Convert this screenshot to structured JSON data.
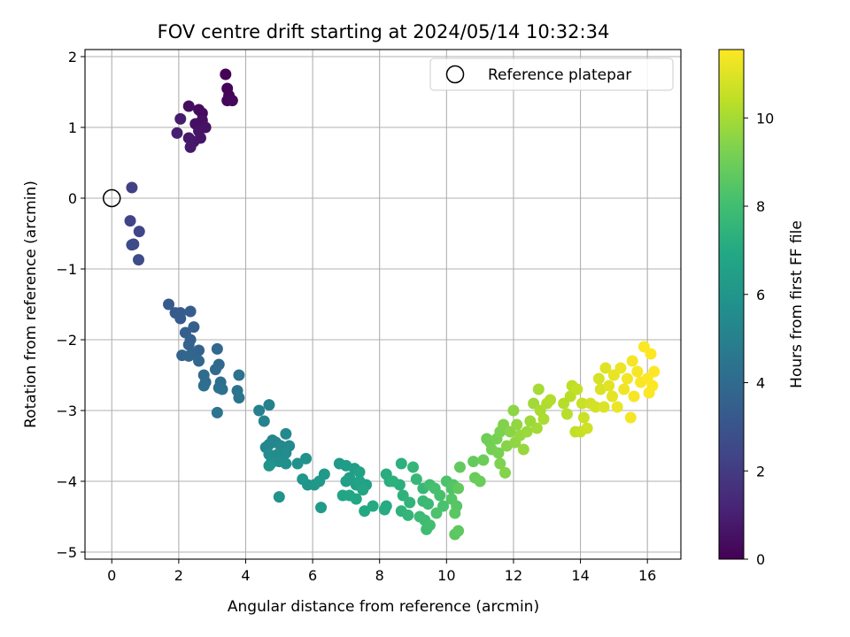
{
  "chart_data": {
    "type": "scatter",
    "title": "FOV centre drift starting at 2024/05/14 10:32:34",
    "xlabel": "Angular distance from reference (arcmin)",
    "ylabel": "Rotation from reference (arcmin)",
    "xlim": [
      -0.8,
      17.0
    ],
    "ylim": [
      -5.1,
      2.1
    ],
    "xticks": [
      0,
      2,
      4,
      6,
      8,
      10,
      12,
      14,
      16
    ],
    "yticks": [
      -5,
      -4,
      -3,
      -2,
      -1,
      0,
      1,
      2
    ],
    "grid": true,
    "legend": {
      "placement": "top-right",
      "entries": [
        "Reference platepar"
      ]
    },
    "reference_point": {
      "x": 0.0,
      "y": 0.0,
      "label": "Reference platepar"
    },
    "colorbar": {
      "label": "Hours from first FF file",
      "colormap": "viridis",
      "range": [
        0,
        11.55
      ],
      "ticks": [
        0,
        2,
        4,
        6,
        8,
        10
      ]
    },
    "points": [
      [
        3.4,
        1.75,
        0.05
      ],
      [
        3.45,
        1.55,
        0.1
      ],
      [
        3.5,
        1.45,
        0.15
      ],
      [
        3.45,
        1.38,
        0.2
      ],
      [
        3.6,
        1.38,
        0.25
      ],
      [
        2.7,
        1.2,
        0.3
      ],
      [
        2.6,
        1.25,
        0.35
      ],
      [
        2.3,
        1.3,
        0.4
      ],
      [
        2.7,
        1.1,
        0.45
      ],
      [
        2.5,
        1.05,
        0.5
      ],
      [
        2.8,
        1.0,
        0.55
      ],
      [
        2.6,
        0.95,
        0.6
      ],
      [
        2.65,
        0.85,
        0.65
      ],
      [
        2.45,
        0.8,
        0.7
      ],
      [
        2.3,
        0.85,
        0.75
      ],
      [
        2.35,
        0.72,
        0.8
      ],
      [
        2.05,
        1.12,
        0.9
      ],
      [
        1.95,
        0.92,
        1.0
      ],
      [
        0.6,
        0.15,
        2.2
      ],
      [
        0.55,
        -0.32,
        2.3
      ],
      [
        0.82,
        -0.47,
        2.4
      ],
      [
        0.65,
        -0.65,
        2.5
      ],
      [
        0.6,
        -0.66,
        2.6
      ],
      [
        0.8,
        -0.87,
        2.7
      ],
      [
        1.7,
        -1.5,
        3.2
      ],
      [
        1.9,
        -1.62,
        3.25
      ],
      [
        2.05,
        -1.62,
        3.3
      ],
      [
        2.05,
        -1.7,
        3.35
      ],
      [
        2.35,
        -1.6,
        3.4
      ],
      [
        2.45,
        -1.82,
        3.45
      ],
      [
        2.2,
        -1.9,
        3.5
      ],
      [
        2.35,
        -2.0,
        3.55
      ],
      [
        2.3,
        -2.07,
        3.6
      ],
      [
        2.6,
        -2.15,
        3.65
      ],
      [
        2.45,
        -2.2,
        3.7
      ],
      [
        2.1,
        -2.22,
        3.75
      ],
      [
        2.3,
        -2.23,
        3.8
      ],
      [
        2.6,
        -2.3,
        3.85
      ],
      [
        3.15,
        -2.13,
        3.9
      ],
      [
        3.2,
        -2.35,
        3.95
      ],
      [
        3.1,
        -2.42,
        4.0
      ],
      [
        2.75,
        -2.5,
        4.05
      ],
      [
        2.8,
        -2.6,
        4.1
      ],
      [
        3.25,
        -2.6,
        4.15
      ],
      [
        2.75,
        -2.65,
        4.2
      ],
      [
        3.3,
        -2.7,
        4.25
      ],
      [
        3.2,
        -2.68,
        4.3
      ],
      [
        3.8,
        -2.5,
        4.35
      ],
      [
        3.75,
        -2.72,
        4.4
      ],
      [
        3.8,
        -2.82,
        4.45
      ],
      [
        3.15,
        -3.03,
        4.5
      ],
      [
        4.4,
        -3.0,
        5.0
      ],
      [
        4.7,
        -2.92,
        5.05
      ],
      [
        4.55,
        -3.15,
        5.1
      ],
      [
        4.8,
        -3.42,
        5.15
      ],
      [
        4.9,
        -3.45,
        5.2
      ],
      [
        4.7,
        -3.48,
        5.25
      ],
      [
        4.6,
        -3.52,
        5.3
      ],
      [
        5.05,
        -3.5,
        5.35
      ],
      [
        5.2,
        -3.33,
        5.4
      ],
      [
        5.3,
        -3.5,
        5.45
      ],
      [
        4.95,
        -3.62,
        5.5
      ],
      [
        5.2,
        -3.6,
        5.55
      ],
      [
        4.7,
        -3.62,
        5.6
      ],
      [
        4.75,
        -3.75,
        5.65
      ],
      [
        5.0,
        -3.72,
        5.7
      ],
      [
        5.2,
        -3.75,
        5.75
      ],
      [
        5.55,
        -3.75,
        5.8
      ],
      [
        5.8,
        -3.68,
        5.85
      ],
      [
        5.0,
        -4.22,
        5.9
      ],
      [
        4.7,
        -3.78,
        5.95
      ],
      [
        5.85,
        -4.05,
        6.0
      ],
      [
        5.7,
        -3.97,
        6.05
      ],
      [
        6.05,
        -4.05,
        6.1
      ],
      [
        6.2,
        -4.0,
        6.15
      ],
      [
        6.35,
        -3.9,
        6.2
      ],
      [
        6.25,
        -4.37,
        6.25
      ],
      [
        6.8,
        -3.75,
        6.3
      ],
      [
        7.0,
        -3.78,
        6.35
      ],
      [
        7.25,
        -3.82,
        6.4
      ],
      [
        7.1,
        -3.95,
        6.45
      ],
      [
        7.0,
        -4.0,
        6.5
      ],
      [
        7.3,
        -4.05,
        6.55
      ],
      [
        7.4,
        -3.87,
        6.6
      ],
      [
        7.4,
        -4.0,
        6.65
      ],
      [
        7.6,
        -4.05,
        6.7
      ],
      [
        7.5,
        -4.12,
        6.75
      ],
      [
        6.9,
        -4.2,
        6.8
      ],
      [
        7.1,
        -4.2,
        6.85
      ],
      [
        7.3,
        -4.25,
        6.9
      ],
      [
        7.55,
        -4.42,
        6.95
      ],
      [
        7.8,
        -4.35,
        7.0
      ],
      [
        8.2,
        -4.35,
        7.05
      ],
      [
        8.15,
        -4.4,
        7.1
      ],
      [
        8.2,
        -3.9,
        7.15
      ],
      [
        8.3,
        -4.0,
        7.2
      ],
      [
        8.6,
        -4.05,
        7.25
      ],
      [
        8.65,
        -3.75,
        7.3
      ],
      [
        8.4,
        -4.0,
        7.35
      ],
      [
        8.7,
        -4.2,
        7.4
      ],
      [
        8.65,
        -4.42,
        7.45
      ],
      [
        8.9,
        -4.3,
        7.5
      ],
      [
        8.85,
        -4.48,
        7.55
      ],
      [
        9.0,
        -3.8,
        7.6
      ],
      [
        9.1,
        -3.97,
        7.65
      ],
      [
        9.3,
        -4.1,
        7.7
      ],
      [
        9.3,
        -4.28,
        7.75
      ],
      [
        9.45,
        -4.32,
        7.8
      ],
      [
        9.2,
        -4.5,
        7.85
      ],
      [
        9.35,
        -4.55,
        7.9
      ],
      [
        9.4,
        -4.68,
        7.95
      ],
      [
        9.5,
        -4.62,
        8.0
      ],
      [
        9.5,
        -4.05,
        8.05
      ],
      [
        9.65,
        -4.1,
        8.1
      ],
      [
        9.8,
        -4.2,
        8.15
      ],
      [
        9.9,
        -4.35,
        8.2
      ],
      [
        9.7,
        -4.45,
        8.25
      ],
      [
        10.0,
        -4.0,
        8.3
      ],
      [
        10.15,
        -4.1,
        8.35
      ],
      [
        10.2,
        -4.05,
        8.4
      ],
      [
        10.15,
        -4.25,
        8.45
      ],
      [
        10.3,
        -4.35,
        8.5
      ],
      [
        10.25,
        -4.45,
        8.55
      ],
      [
        10.25,
        -4.75,
        8.6
      ],
      [
        10.35,
        -4.7,
        8.65
      ],
      [
        10.35,
        -4.1,
        8.7
      ],
      [
        10.4,
        -3.8,
        8.75
      ],
      [
        10.8,
        -3.72,
        8.8
      ],
      [
        10.85,
        -3.95,
        8.85
      ],
      [
        11.0,
        -4.0,
        8.9
      ],
      [
        11.1,
        -3.7,
        8.95
      ],
      [
        11.2,
        -3.4,
        9.0
      ],
      [
        11.3,
        -3.45,
        9.05
      ],
      [
        11.35,
        -3.55,
        9.1
      ],
      [
        11.5,
        -3.4,
        9.15
      ],
      [
        11.55,
        -3.6,
        9.2
      ],
      [
        11.6,
        -3.3,
        9.25
      ],
      [
        11.6,
        -3.75,
        9.3
      ],
      [
        11.7,
        -3.2,
        9.35
      ],
      [
        11.75,
        -3.88,
        9.4
      ],
      [
        11.8,
        -3.5,
        9.45
      ],
      [
        11.9,
        -3.3,
        9.5
      ],
      [
        12.0,
        -3.0,
        9.55
      ],
      [
        12.05,
        -3.45,
        9.6
      ],
      [
        12.1,
        -3.2,
        9.65
      ],
      [
        12.2,
        -3.35,
        9.7
      ],
      [
        12.3,
        -3.55,
        9.75
      ],
      [
        12.4,
        -3.3,
        9.8
      ],
      [
        12.5,
        -3.15,
        9.85
      ],
      [
        12.6,
        -2.9,
        9.9
      ],
      [
        12.7,
        -3.25,
        9.95
      ],
      [
        12.75,
        -2.7,
        10.0
      ],
      [
        12.8,
        -3.0,
        10.05
      ],
      [
        12.9,
        -3.12,
        10.1
      ],
      [
        13.0,
        -2.9,
        10.15
      ],
      [
        13.1,
        -2.85,
        10.2
      ],
      [
        13.5,
        -2.9,
        10.25
      ],
      [
        13.6,
        -3.05,
        10.3
      ],
      [
        13.7,
        -2.8,
        10.35
      ],
      [
        13.75,
        -2.65,
        10.4
      ],
      [
        13.85,
        -3.3,
        10.45
      ],
      [
        13.9,
        -2.7,
        10.5
      ],
      [
        14.0,
        -3.3,
        10.55
      ],
      [
        14.05,
        -2.9,
        10.6
      ],
      [
        14.1,
        -3.1,
        10.65
      ],
      [
        14.2,
        -3.25,
        10.7
      ],
      [
        14.3,
        -2.9,
        10.75
      ],
      [
        14.45,
        -2.95,
        10.8
      ],
      [
        14.55,
        -2.55,
        10.85
      ],
      [
        14.6,
        -2.7,
        10.9
      ],
      [
        14.7,
        -2.95,
        10.95
      ],
      [
        14.75,
        -2.4,
        11.0
      ],
      [
        14.85,
        -2.65,
        11.05
      ],
      [
        14.95,
        -2.8,
        11.1
      ],
      [
        15.0,
        -2.5,
        11.15
      ],
      [
        15.1,
        -2.95,
        11.2
      ],
      [
        15.2,
        -2.4,
        11.25
      ],
      [
        15.3,
        -2.7,
        11.3
      ],
      [
        15.4,
        -2.55,
        11.35
      ],
      [
        15.5,
        -3.1,
        11.38
      ],
      [
        15.55,
        -2.3,
        11.4
      ],
      [
        15.6,
        -2.8,
        11.42
      ],
      [
        15.7,
        -2.45,
        11.45
      ],
      [
        15.8,
        -2.6,
        11.47
      ],
      [
        15.9,
        -2.1,
        11.49
      ],
      [
        16.0,
        -2.55,
        11.51
      ],
      [
        16.05,
        -2.75,
        11.52
      ],
      [
        16.1,
        -2.2,
        11.53
      ],
      [
        16.15,
        -2.65,
        11.54
      ],
      [
        16.2,
        -2.45,
        11.55
      ]
    ]
  }
}
